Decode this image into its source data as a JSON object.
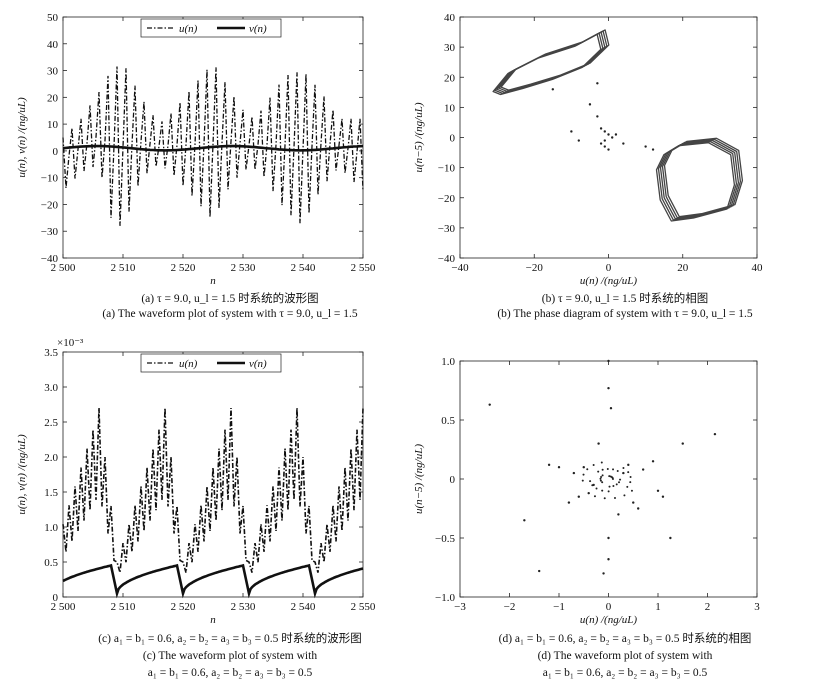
{
  "charts": [
    {
      "type": "line",
      "ylabel": "u(n), v(n) /(ng/uL)",
      "xlabel": "n",
      "xlim": [
        2500,
        2550
      ],
      "ylim": [
        -40,
        50
      ],
      "xticks": [
        "2 500",
        "2 510",
        "2 520",
        "2 530",
        "2 540",
        "2 550"
      ],
      "yticks": [
        "−40",
        "−30",
        "−20",
        "−10",
        "0",
        "10",
        "20",
        "30",
        "40",
        "50"
      ],
      "legend": {
        "position": "top-center",
        "entries": [
          "u(n)",
          "v(n)"
        ]
      },
      "series_envelope_u": [
        {
          "n": 2500,
          "hi": 5,
          "lo": -15
        },
        {
          "n": 2503,
          "hi": 12,
          "lo": -8
        },
        {
          "n": 2506,
          "hi": 22,
          "lo": -5
        },
        {
          "n": 2508,
          "hi": 30,
          "lo": -25
        },
        {
          "n": 2510,
          "hi": 33,
          "lo": -29
        },
        {
          "n": 2513,
          "hi": 20,
          "lo": -10
        },
        {
          "n": 2516,
          "hi": 10,
          "lo": -5
        },
        {
          "n": 2518,
          "hi": 14,
          "lo": -8
        },
        {
          "n": 2522,
          "hi": 25,
          "lo": -18
        },
        {
          "n": 2525,
          "hi": 33,
          "lo": -26
        },
        {
          "n": 2528,
          "hi": 22,
          "lo": -12
        },
        {
          "n": 2531,
          "hi": 12,
          "lo": -6
        },
        {
          "n": 2533,
          "hi": 15,
          "lo": -8
        },
        {
          "n": 2537,
          "hi": 28,
          "lo": -22
        },
        {
          "n": 2540,
          "hi": 30,
          "lo": -28
        },
        {
          "n": 2543,
          "hi": 22,
          "lo": -14
        },
        {
          "n": 2546,
          "hi": 12,
          "lo": -6
        },
        {
          "n": 2550,
          "hi": 12,
          "lo": -15
        }
      ],
      "series_v_level": 1
    },
    {
      "type": "scatter",
      "ylabel": "u(n−5) /(ng/uL)",
      "xlabel": "u(n) /(ng/uL)",
      "xlim": [
        -40,
        40
      ],
      "ylim": [
        -40,
        40
      ],
      "xticks": [
        "−40",
        "−20",
        "0",
        "20",
        "40"
      ],
      "yticks": [
        "−40",
        "−30",
        "−20",
        "−10",
        "0",
        "10",
        "20",
        "30",
        "40"
      ],
      "attractors": [
        {
          "points": [
            [
              -30,
              16
            ],
            [
              -26,
              22
            ],
            [
              -18,
              27
            ],
            [
              -8,
              31
            ],
            [
              -2,
              35
            ],
            [
              -1,
              30
            ],
            [
              -6,
              24
            ],
            [
              -14,
              20
            ],
            [
              -22,
              17
            ],
            [
              -28,
              15
            ]
          ]
        },
        {
          "points": [
            [
              16,
              -5
            ],
            [
              20,
              -2
            ],
            [
              28,
              -1
            ],
            [
              34,
              -5
            ],
            [
              35,
              -15
            ],
            [
              33,
              -23
            ],
            [
              24,
              -26
            ],
            [
              18,
              -27
            ],
            [
              15,
              -20
            ],
            [
              14,
              -10
            ]
          ]
        }
      ],
      "scatter": [
        [
          -3,
          18
        ],
        [
          -5,
          11
        ],
        [
          -3,
          7
        ],
        [
          -1,
          -1
        ],
        [
          0,
          1
        ],
        [
          1,
          0
        ],
        [
          -2,
          -2
        ],
        [
          -1,
          2
        ],
        [
          2,
          1
        ],
        [
          -8,
          -1
        ],
        [
          -10,
          2
        ],
        [
          -2,
          3
        ],
        [
          0,
          -4
        ],
        [
          -15,
          16
        ],
        [
          -1,
          -3
        ],
        [
          10,
          -3
        ],
        [
          12,
          -4
        ],
        [
          4,
          -2
        ]
      ]
    },
    {
      "type": "line",
      "ylabel": "u(n), v(n) /(ng/uL)",
      "xlabel": "n",
      "xlim": [
        2500,
        2550
      ],
      "ylim": [
        0,
        3.5
      ],
      "scale_note": "×10⁻³",
      "xticks": [
        "2 500",
        "2 510",
        "2 520",
        "2 530",
        "2 540",
        "2 550"
      ],
      "yticks": [
        "0",
        "0.5",
        "1.0",
        "1.5",
        "2.0",
        "2.5",
        "3.0",
        "3.5"
      ],
      "legend": {
        "position": "top-center",
        "entries": [
          "u(n)",
          "v(n)"
        ]
      },
      "u_peaks": [
        2509,
        2520,
        2531,
        2542
      ],
      "u_peak_values": [
        2.7,
        2.7,
        2.6,
        2.6
      ],
      "v_peaks": [
        2508,
        2519,
        2530,
        2541,
        2549
      ],
      "v_peak_value": 0.45
    },
    {
      "type": "scatter",
      "ylabel": "u(n−5) /(ng/uL)",
      "xlabel": "u(n) /(ng/uL)",
      "xlim": [
        -3,
        3
      ],
      "ylim": [
        -1.0,
        1.0
      ],
      "xticks": [
        "−3",
        "−2",
        "−1",
        "0",
        "1",
        "2",
        "3"
      ],
      "yticks": [
        "−1.0",
        "−0.5",
        "0",
        "0.5",
        "1.0"
      ],
      "scatter": [
        [
          -2.4,
          0.63
        ],
        [
          2.15,
          0.38
        ],
        [
          1.5,
          0.3
        ],
        [
          -1.4,
          -0.78
        ],
        [
          0,
          -0.68
        ],
        [
          1.25,
          -0.5
        ],
        [
          -1.7,
          -0.35
        ],
        [
          0,
          0.77
        ],
        [
          0.0,
          1.0
        ],
        [
          -0.8,
          -0.2
        ],
        [
          0.9,
          0.15
        ],
        [
          -1.2,
          0.12
        ],
        [
          1.1,
          -0.15
        ],
        [
          0.5,
          -0.2
        ],
        [
          -0.5,
          0.1
        ],
        [
          0.3,
          0.05
        ],
        [
          -0.3,
          -0.05
        ],
        [
          0.7,
          0.08
        ],
        [
          -0.7,
          0.05
        ],
        [
          0.2,
          -0.3
        ],
        [
          -0.2,
          0.3
        ],
        [
          0.05,
          0.6
        ],
        [
          0.0,
          -0.5
        ],
        [
          -0.1,
          -0.8
        ],
        [
          0.6,
          -0.25
        ],
        [
          -0.6,
          -0.15
        ],
        [
          1.0,
          -0.1
        ],
        [
          -1.0,
          0.1
        ],
        [
          0.4,
          0.12
        ],
        [
          -0.4,
          -0.12
        ]
      ]
    }
  ],
  "captions": {
    "a_zh": "(a) τ = 9.0, u_l = 1.5 时系统的波形图",
    "a_en": "(a) The waveform plot of system with τ = 9.0, u_l = 1.5",
    "b_zh": "(b) τ = 9.0, u_l = 1.5 时系统的相图",
    "b_en": "(b) The phase diagram of system with τ = 9.0, u_l = 1.5",
    "c_zh": "(c) a₁ = b₁ = 0.6, a₂ = b₂ = a₃ = b₃ = 0.5 时系统的波形图",
    "c_en1": "(c) The waveform plot of system with",
    "c_en2": "a₁ = b₁ = 0.6, a₂ = b₂ = a₃ = b₃ = 0.5",
    "d_zh": "(d) a₁ = b₁ = 0.6, a₂ = b₂ = a₃ = b₃ = 0.5 时系统的相图",
    "d_en1": "(d) The waveform plot of system with",
    "d_en2": "a₁ = b₁ = 0.6, a₂ = b₂ = a₃ = b₃ = 0.5"
  }
}
